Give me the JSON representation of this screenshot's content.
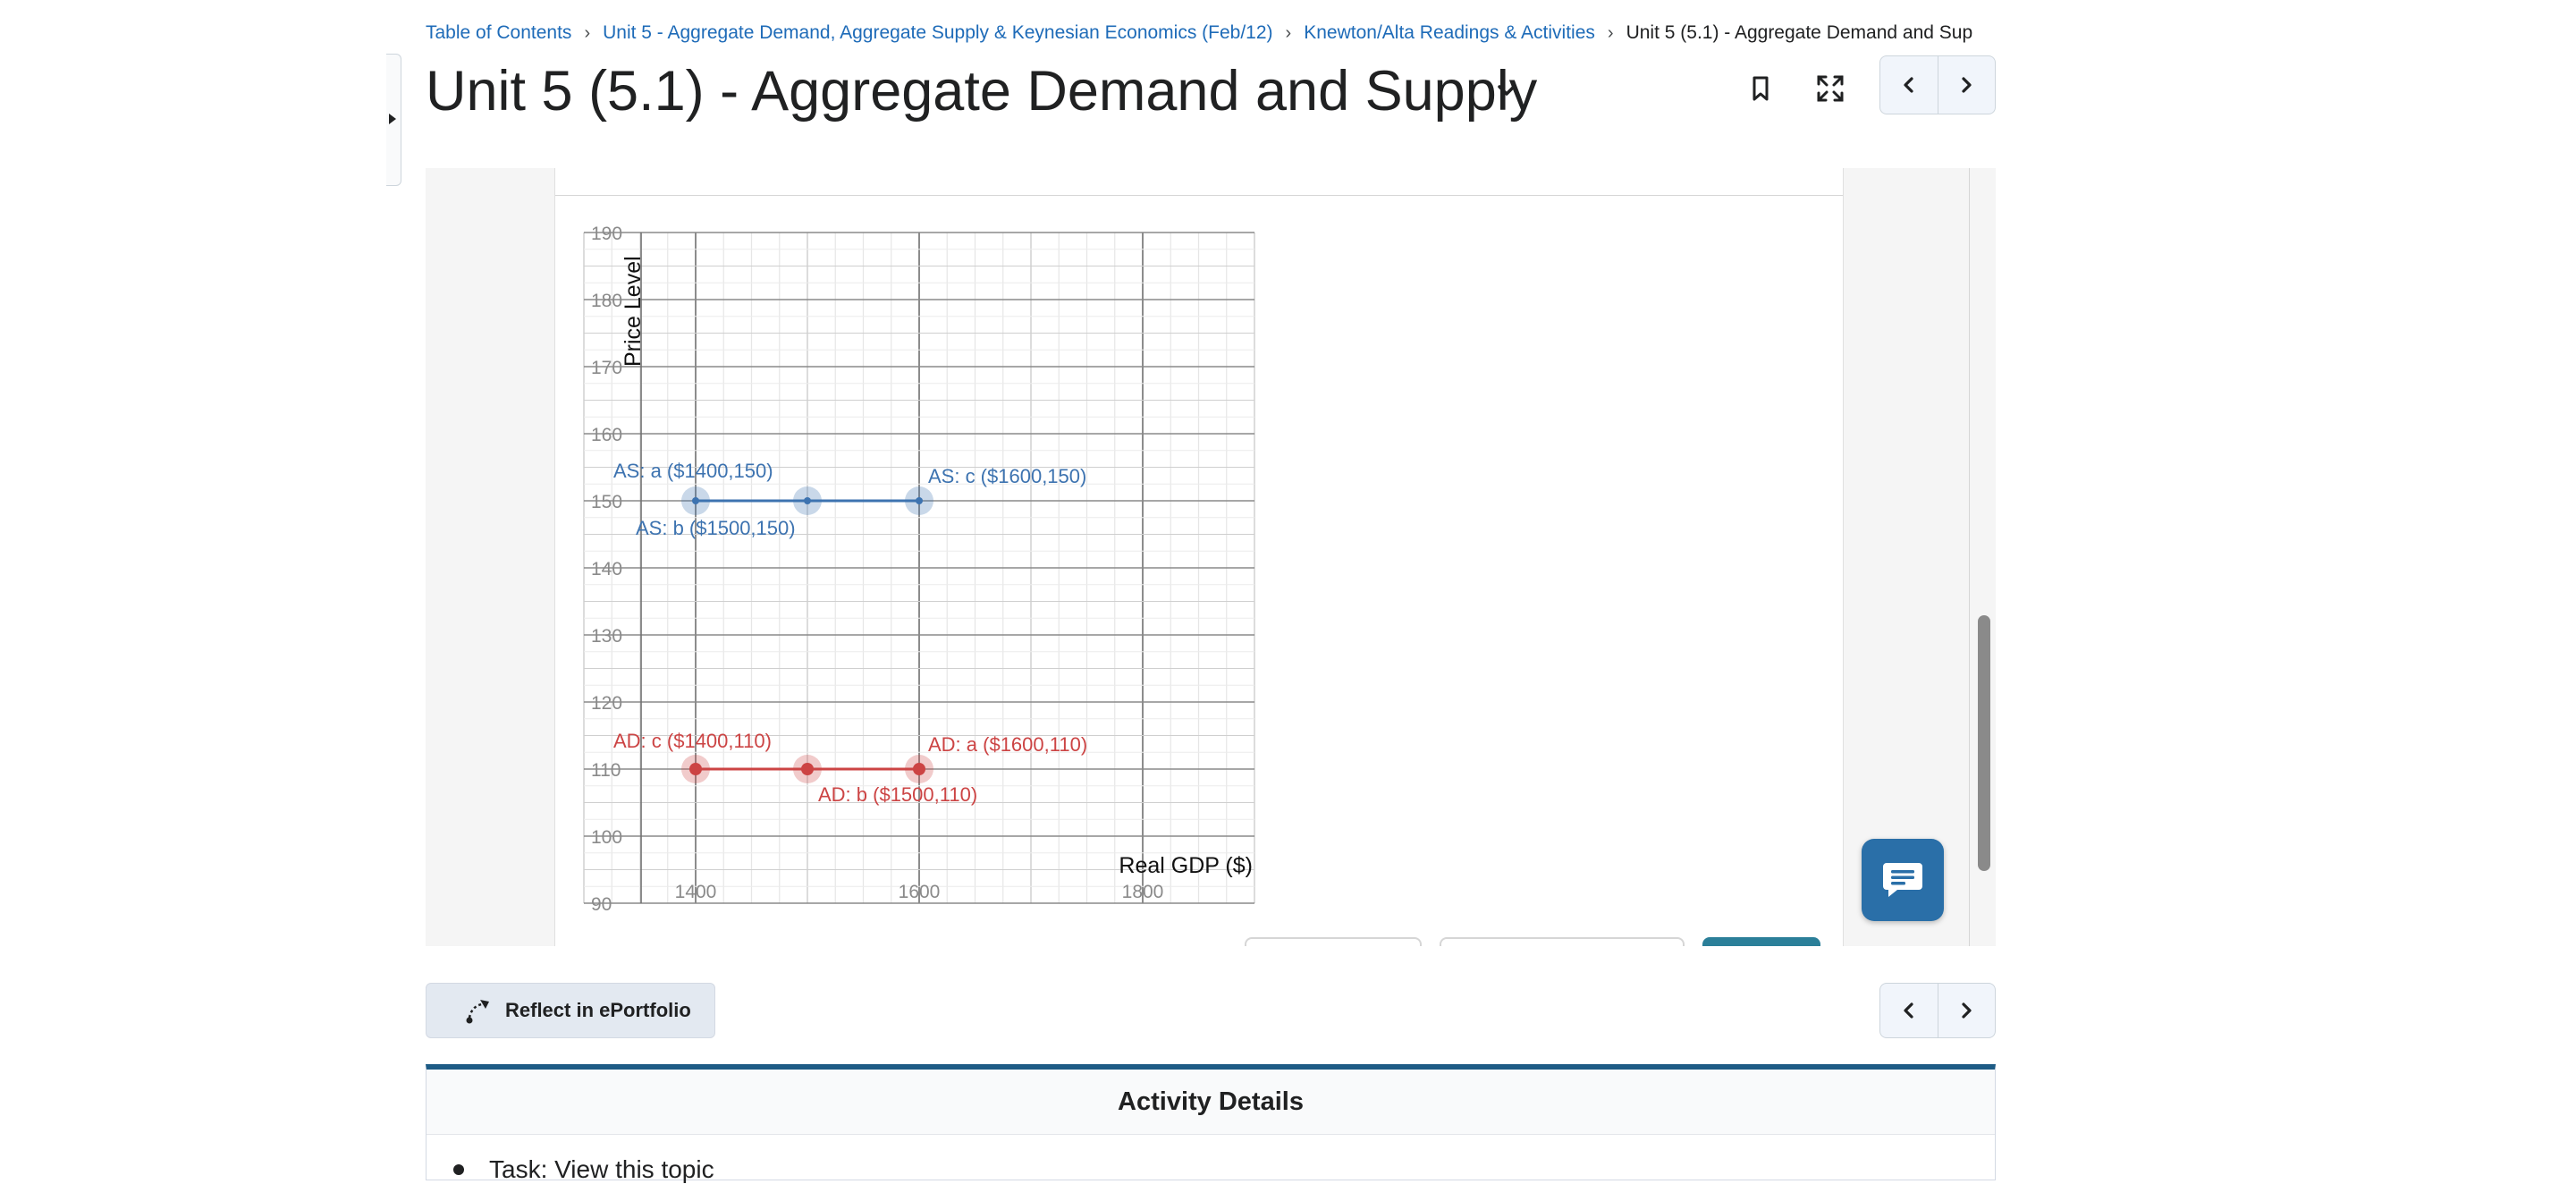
{
  "breadcrumbs": {
    "items": [
      "Table of Contents",
      "Unit 5 - Aggregate Demand, Aggregate Supply & Keynesian Economics (Feb/12)",
      "Knewton/Alta Readings & Activities"
    ],
    "current": "Unit 5 (5.1) - Aggregate Demand and Sup"
  },
  "page": {
    "title": "Unit 5 (5.1) - Aggregate Demand and Supply"
  },
  "footer": {
    "reflect_label": "Reflect in ePortfolio"
  },
  "activity": {
    "heading": "Activity Details",
    "task": "Task: View this topic"
  },
  "colors": {
    "as": "#3d73b0",
    "ad": "#cc4444",
    "link": "#1e6bb8",
    "accent": "#1d5b85"
  },
  "chart_data": {
    "type": "line",
    "xlabel": "Real GDP ($)",
    "ylabel": "Price Level",
    "xlim": [
      1300,
      1900
    ],
    "ylim": [
      90,
      190
    ],
    "x_ticks": [
      1400,
      1600,
      1800
    ],
    "y_ticks": [
      90,
      100,
      110,
      120,
      130,
      140,
      150,
      160,
      170,
      180,
      190
    ],
    "grid": true,
    "series": [
      {
        "name": "AS",
        "color": "#3d73b0",
        "points": [
          {
            "x": 1400,
            "y": 150,
            "label": "AS: a ($1400,150)"
          },
          {
            "x": 1500,
            "y": 150,
            "label": "AS: b ($1500,150)"
          },
          {
            "x": 1600,
            "y": 150,
            "label": "AS: c ($1600,150)"
          }
        ]
      },
      {
        "name": "AD",
        "color": "#cc4444",
        "points": [
          {
            "x": 1400,
            "y": 110,
            "label": "AD: c ($1400,110)"
          },
          {
            "x": 1500,
            "y": 110,
            "label": "AD: b ($1500,110)"
          },
          {
            "x": 1600,
            "y": 110,
            "label": "AD: a ($1600,110)"
          }
        ]
      }
    ]
  }
}
